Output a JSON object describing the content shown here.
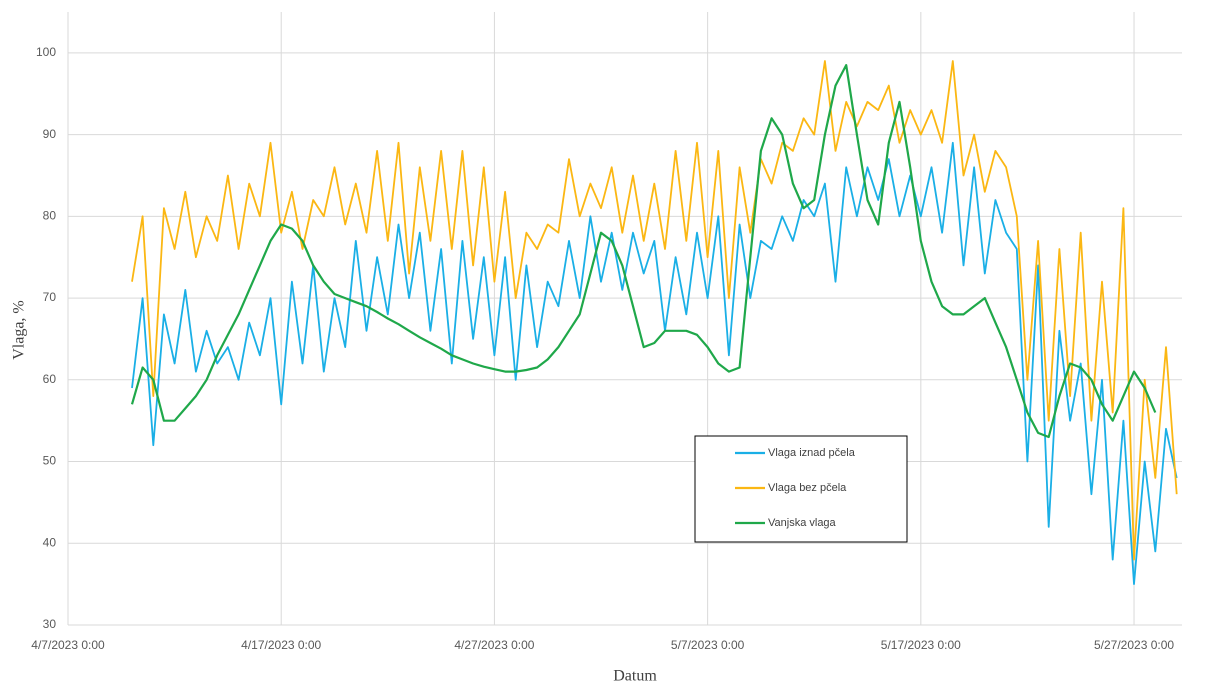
{
  "chart_data": {
    "type": "line",
    "x_label": "Datum",
    "y_label": "Vlaga, %",
    "x": [
      "2023-04-10T00:00",
      "2023-04-10T12:00",
      "2023-04-11T00:00",
      "2023-04-11T12:00",
      "2023-04-12T00:00",
      "2023-04-12T12:00",
      "2023-04-13T00:00",
      "2023-04-13T12:00",
      "2023-04-14T00:00",
      "2023-04-14T12:00",
      "2023-04-15T00:00",
      "2023-04-15T12:00",
      "2023-04-16T00:00",
      "2023-04-16T12:00",
      "2023-04-17T00:00",
      "2023-04-17T12:00",
      "2023-04-18T00:00",
      "2023-04-18T12:00",
      "2023-04-19T00:00",
      "2023-04-19T12:00",
      "2023-04-20T00:00",
      "2023-04-20T12:00",
      "2023-04-21T00:00",
      "2023-04-21T12:00",
      "2023-04-22T00:00",
      "2023-04-22T12:00",
      "2023-04-23T00:00",
      "2023-04-23T12:00",
      "2023-04-24T00:00",
      "2023-04-24T12:00",
      "2023-04-25T00:00",
      "2023-04-25T12:00",
      "2023-04-26T00:00",
      "2023-04-26T12:00",
      "2023-04-27T00:00",
      "2023-04-27T12:00",
      "2023-04-28T00:00",
      "2023-04-28T12:00",
      "2023-04-29T00:00",
      "2023-04-29T12:00",
      "2023-04-30T00:00",
      "2023-04-30T12:00",
      "2023-05-01T00:00",
      "2023-05-01T12:00",
      "2023-05-02T00:00",
      "2023-05-02T12:00",
      "2023-05-03T00:00",
      "2023-05-03T12:00",
      "2023-05-04T00:00",
      "2023-05-04T12:00",
      "2023-05-05T00:00",
      "2023-05-05T12:00",
      "2023-05-06T00:00",
      "2023-05-06T12:00",
      "2023-05-07T00:00",
      "2023-05-07T12:00",
      "2023-05-08T00:00",
      "2023-05-08T12:00",
      "2023-05-09T00:00",
      "2023-05-09T12:00",
      "2023-05-10T00:00",
      "2023-05-10T12:00",
      "2023-05-11T00:00",
      "2023-05-11T12:00",
      "2023-05-12T00:00",
      "2023-05-12T12:00",
      "2023-05-13T00:00",
      "2023-05-13T12:00",
      "2023-05-14T00:00",
      "2023-05-14T12:00",
      "2023-05-15T00:00",
      "2023-05-15T12:00",
      "2023-05-16T00:00",
      "2023-05-16T12:00",
      "2023-05-17T00:00",
      "2023-05-17T12:00",
      "2023-05-18T00:00",
      "2023-05-18T12:00",
      "2023-05-19T00:00",
      "2023-05-19T12:00",
      "2023-05-20T00:00",
      "2023-05-20T12:00",
      "2023-05-21T00:00",
      "2023-05-21T12:00",
      "2023-05-22T00:00",
      "2023-05-22T12:00",
      "2023-05-23T00:00",
      "2023-05-23T12:00",
      "2023-05-24T00:00",
      "2023-05-24T12:00",
      "2023-05-25T00:00",
      "2023-05-25T12:00",
      "2023-05-26T00:00",
      "2023-05-26T12:00",
      "2023-05-27T00:00",
      "2023-05-27T12:00",
      "2023-05-28T00:00",
      "2023-05-28T12:00",
      "2023-05-29T00:00"
    ],
    "series": [
      {
        "name": "Vlaga iznad pčela",
        "color": "#1aafe6",
        "values": [
          59,
          70,
          52,
          68,
          62,
          71,
          61,
          66,
          62,
          64,
          60,
          67,
          63,
          70,
          57,
          72,
          62,
          74,
          61,
          70,
          64,
          77,
          66,
          75,
          68,
          79,
          70,
          78,
          66,
          76,
          62,
          77,
          65,
          75,
          63,
          75,
          60,
          74,
          64,
          72,
          69,
          77,
          70,
          80,
          72,
          78,
          71,
          78,
          73,
          77,
          66,
          75,
          68,
          78,
          70,
          80,
          63,
          79,
          70,
          77,
          76,
          80,
          77,
          82,
          80,
          84,
          72,
          86,
          80,
          86,
          82,
          87,
          80,
          85,
          80,
          86,
          78,
          89,
          74,
          86,
          73,
          82,
          78,
          76,
          50,
          74,
          42,
          66,
          55,
          62,
          46,
          60,
          38,
          55,
          35,
          50,
          39,
          54,
          48
        ]
      },
      {
        "name": "Vlaga bez pčela",
        "color": "#fbb713",
        "values": [
          72,
          80,
          58,
          81,
          76,
          83,
          75,
          80,
          77,
          85,
          76,
          84,
          80,
          89,
          78,
          83,
          76,
          82,
          80,
          86,
          79,
          84,
          78,
          88,
          77,
          89,
          73,
          86,
          77,
          88,
          76,
          88,
          74,
          86,
          72,
          83,
          70,
          78,
          76,
          79,
          78,
          87,
          80,
          84,
          81,
          86,
          78,
          85,
          77,
          84,
          76,
          88,
          77,
          89,
          75,
          88,
          70,
          86,
          78,
          87,
          84,
          89,
          88,
          92,
          90,
          99,
          88,
          94,
          91,
          94,
          93,
          96,
          89,
          93,
          90,
          93,
          89,
          99,
          85,
          90,
          83,
          88,
          86,
          80,
          60,
          77,
          55,
          76,
          58,
          78,
          55,
          72,
          56,
          81,
          38,
          60,
          48,
          64,
          46
        ]
      },
      {
        "name": "Vanjska vlaga",
        "color": "#1fa84a",
        "values": [
          57,
          61.5,
          60,
          55,
          55,
          56.5,
          58,
          60,
          63,
          65.5,
          68,
          71,
          74,
          77,
          79,
          78.5,
          77,
          74,
          72,
          70.5,
          70,
          69.5,
          69,
          68.3,
          67.5,
          66.8,
          66,
          65.2,
          64.5,
          63.8,
          63,
          62.5,
          62,
          61.6,
          61.3,
          61,
          61,
          61.2,
          61.5,
          62.5,
          64,
          66,
          68,
          73,
          78,
          77,
          74,
          69,
          64,
          64.5,
          66,
          66,
          66,
          65.5,
          64,
          62,
          61,
          61.5,
          75,
          88,
          92,
          90,
          84,
          81,
          82,
          90,
          96,
          98.5,
          90,
          82,
          79,
          89,
          94,
          86,
          77,
          72,
          69,
          68,
          68,
          69,
          70,
          67,
          64,
          60,
          56,
          53.5,
          53,
          58,
          62,
          61.5,
          60,
          57,
          55,
          58,
          61,
          59,
          56,
          null,
          null
        ]
      }
    ],
    "xlim": [
      "2023-04-07T00:00",
      "2023-05-29T06:00"
    ],
    "xticks": [
      {
        "value": "2023-04-07T00:00",
        "label": "4/7/2023 0:00"
      },
      {
        "value": "2023-04-17T00:00",
        "label": "4/17/2023 0:00"
      },
      {
        "value": "2023-04-27T00:00",
        "label": "4/27/2023 0:00"
      },
      {
        "value": "2023-05-07T00:00",
        "label": "5/7/2023 0:00"
      },
      {
        "value": "2023-05-17T00:00",
        "label": "5/17/2023 0:00"
      },
      {
        "value": "2023-05-27T00:00",
        "label": "5/27/2023 0:00"
      }
    ],
    "ylim": [
      30,
      105
    ],
    "yticks": [
      30,
      40,
      50,
      60,
      70,
      80,
      90,
      100
    ],
    "grid": true,
    "legend_position": "bottom-right-inside"
  }
}
